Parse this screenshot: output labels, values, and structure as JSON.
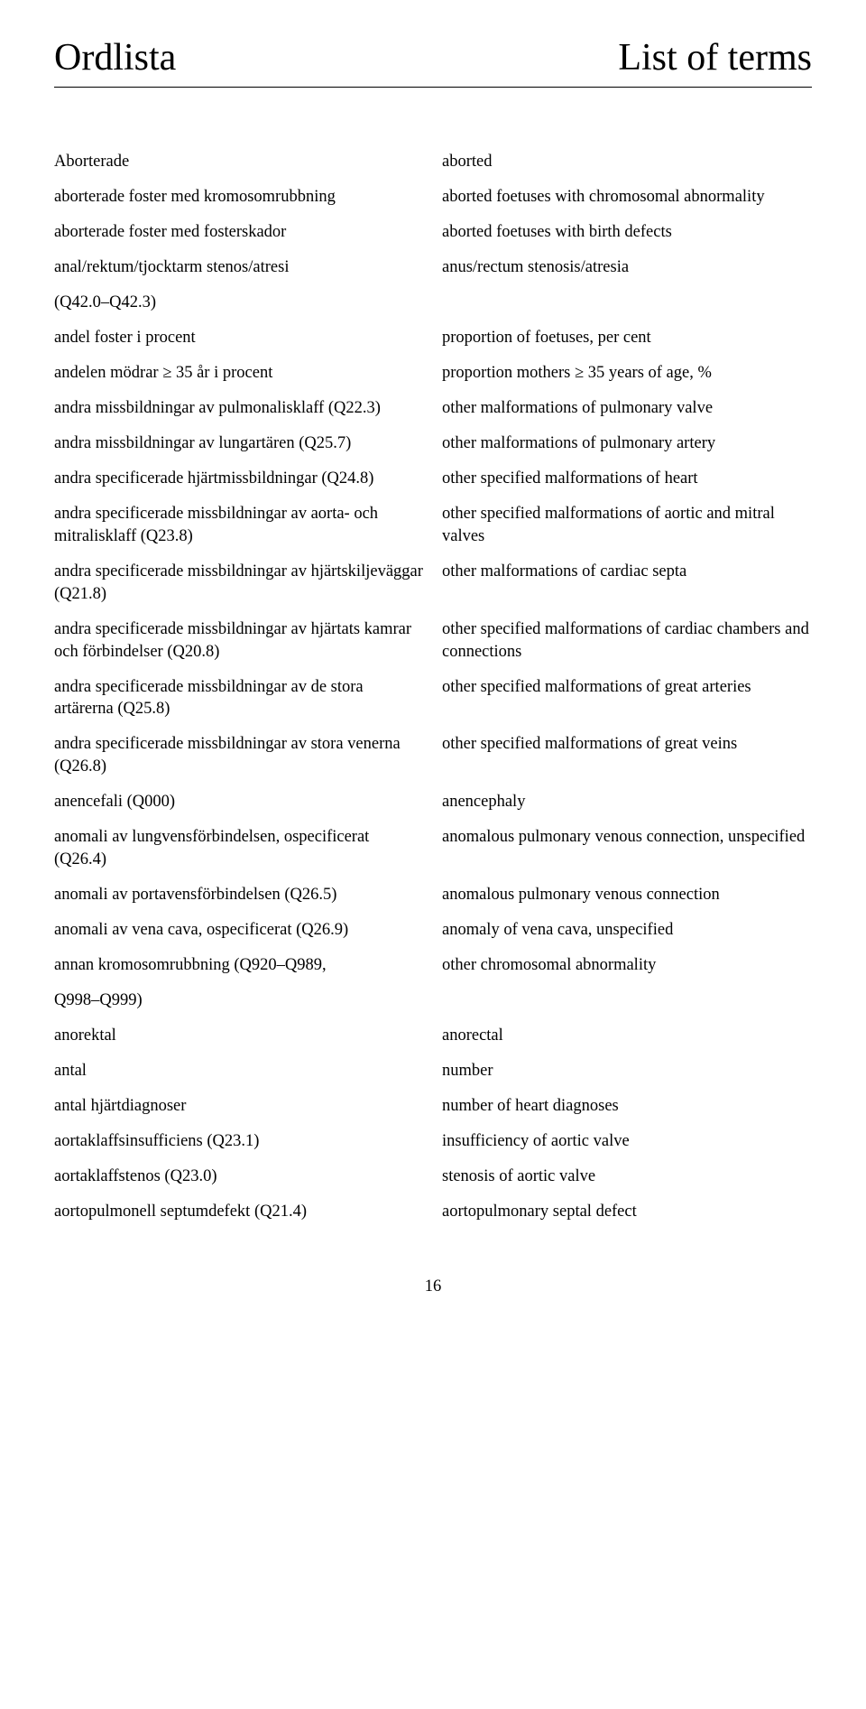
{
  "header": {
    "left": "Ordlista",
    "right": "List of terms"
  },
  "terms": [
    {
      "sv": "Aborterade",
      "en": "aborted"
    },
    {
      "sv": "aborterade foster med kromosomrubbning",
      "en": "aborted foetuses with chromosomal abnormality"
    },
    {
      "sv": "aborterade foster med fosterskador",
      "en": "aborted foetuses with birth defects"
    },
    {
      "sv": "anal/rektum/tjocktarm stenos/atresi",
      "en": "anus/rectum stenosis/atresia"
    },
    {
      "sv": "(Q42.0–Q42.3)",
      "en": ""
    },
    {
      "sv": "andel foster i procent",
      "en": "proportion of foetuses, per cent"
    },
    {
      "sv": "andelen mödrar ≥ 35 år i procent",
      "en": "proportion mothers ≥ 35 years of age, %"
    },
    {
      "sv": "andra missbildningar av pulmonalisklaff (Q22.3)",
      "en": "other malformations of pulmonary valve"
    },
    {
      "sv": "andra missbildningar av lungartären (Q25.7)",
      "en": "other malformations of pulmonary artery"
    },
    {
      "sv": "andra specificerade hjärtmissbildningar (Q24.8)",
      "en": "other specified malformations of heart"
    },
    {
      "sv": "andra specificerade missbildningar av aorta- och mitralisklaff (Q23.8)",
      "en": "other specified malformations of aortic and mitral valves"
    },
    {
      "sv": "andra specificerade missbildningar av hjärtskiljeväggar (Q21.8)",
      "en": "other malformations of cardiac septa"
    },
    {
      "sv": "andra specificerade missbildningar av hjärtats kamrar och förbindelser (Q20.8)",
      "en": "other specified malformations of cardiac chambers and connections"
    },
    {
      "sv": "andra specificerade missbildningar av de stora artärerna (Q25.8)",
      "en": "other specified malformations of great arteries"
    },
    {
      "sv": "andra specificerade missbildningar av stora venerna (Q26.8)",
      "en": "other specified malformations of great veins"
    },
    {
      "sv": "anencefali (Q000)",
      "en": "anencephaly"
    },
    {
      "sv": "anomali av lungvensförbindelsen, ospecificerat (Q26.4)",
      "en": "anomalous pulmonary venous connection, unspecified"
    },
    {
      "sv": "anomali av portavensförbindelsen (Q26.5)",
      "en": "anomalous pulmonary venous connection"
    },
    {
      "sv": "anomali av vena cava, ospecificerat (Q26.9)",
      "en": "anomaly of vena cava, unspecified"
    },
    {
      "sv": "annan kromosomrubbning (Q920–Q989,",
      "en": "other chromosomal abnormality"
    },
    {
      "sv": "Q998–Q999)",
      "en": ""
    },
    {
      "sv": "anorektal",
      "en": "anorectal"
    },
    {
      "sv": "antal",
      "en": "number"
    },
    {
      "sv": "antal hjärtdiagnoser",
      "en": "number of heart diagnoses"
    },
    {
      "sv": "aortaklaffsinsufficiens (Q23.1)",
      "en": "insufficiency of aortic valve"
    },
    {
      "sv": "aortaklaffstenos (Q23.0)",
      "en": "stenosis of aortic valve"
    },
    {
      "sv": "aortopulmonell septumdefekt (Q21.4)",
      "en": "aortopulmonary septal defect"
    }
  ],
  "pageNumber": "16"
}
